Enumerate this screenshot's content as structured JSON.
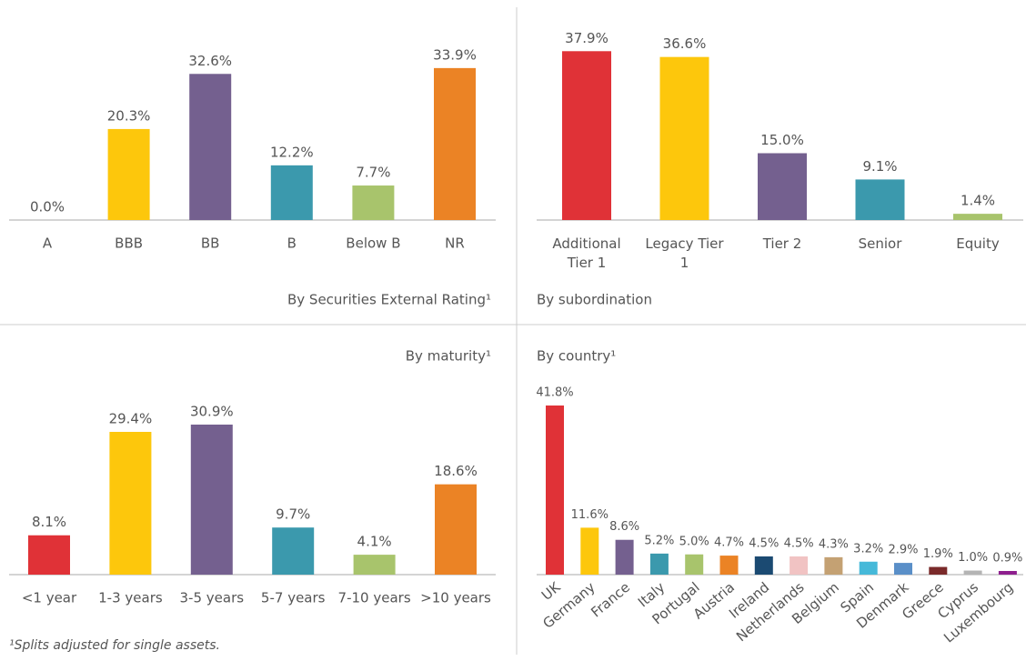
{
  "chart_data": [
    {
      "type": "bar",
      "title": "By Securities External Rating¹",
      "categories": [
        "A",
        "BBB",
        "BB",
        "B",
        "Below B",
        "NR"
      ],
      "values": [
        0.0,
        20.3,
        32.6,
        12.2,
        7.7,
        33.9
      ],
      "value_labels": [
        "0.0%",
        "20.3%",
        "32.6%",
        "12.2%",
        "7.7%",
        "33.9%"
      ],
      "colors": [
        "#e03237",
        "#fdc70c",
        "#74608f",
        "#3b99ad",
        "#a8c46c",
        "#eb8325"
      ]
    },
    {
      "type": "bar",
      "title": "By subordination",
      "categories": [
        "Additional Tier 1",
        "Legacy Tier 1",
        "Tier 2",
        "Senior",
        "Equity"
      ],
      "values": [
        37.9,
        36.6,
        15.0,
        9.1,
        1.4
      ],
      "value_labels": [
        "37.9%",
        "36.6%",
        "15.0%",
        "9.1%",
        "1.4%"
      ],
      "colors": [
        "#e03237",
        "#fdc70c",
        "#74608f",
        "#3b99ad",
        "#a8c46c"
      ]
    },
    {
      "type": "bar",
      "title": "By maturity¹",
      "categories": [
        "<1 year",
        "1-3 years",
        "3-5 years",
        "5-7 years",
        "7-10 years",
        ">10 years"
      ],
      "values": [
        8.1,
        29.4,
        30.9,
        9.7,
        4.1,
        18.6
      ],
      "value_labels": [
        "8.1%",
        "29.4%",
        "30.9%",
        "9.7%",
        "4.1%",
        "18.6%"
      ],
      "colors": [
        "#e03237",
        "#fdc70c",
        "#74608f",
        "#3b99ad",
        "#a8c46c",
        "#eb8325"
      ]
    },
    {
      "type": "bar",
      "title": "By country¹",
      "categories": [
        "UK",
        "Germany",
        "France",
        "Italy",
        "Portugal",
        "Austria",
        "Ireland",
        "Netherlands",
        "Belgium",
        "Spain",
        "Denmark",
        "Greece",
        "Cyprus",
        "Luxembourg"
      ],
      "values": [
        41.8,
        11.6,
        8.6,
        5.2,
        5.0,
        4.7,
        4.5,
        4.5,
        4.3,
        3.2,
        2.9,
        1.9,
        1.0,
        0.9
      ],
      "value_labels": [
        "41.8%",
        "11.6%",
        "8.6%",
        "5.2%",
        "5.0%",
        "4.7%",
        "4.5%",
        "4.5%",
        "4.3%",
        "3.2%",
        "2.9%",
        "1.9%",
        "1.0%",
        "0.9%"
      ],
      "colors": [
        "#e03237",
        "#fdc70c",
        "#74608f",
        "#3b99ad",
        "#a8c46c",
        "#eb8325",
        "#1b4a72",
        "#f1c3c3",
        "#c4a173",
        "#46b9d9",
        "#5a8fc8",
        "#7a2a2a",
        "#b4b4b4",
        "#8e1f8e"
      ]
    }
  ],
  "footnote": "¹Splits adjusted for single assets."
}
